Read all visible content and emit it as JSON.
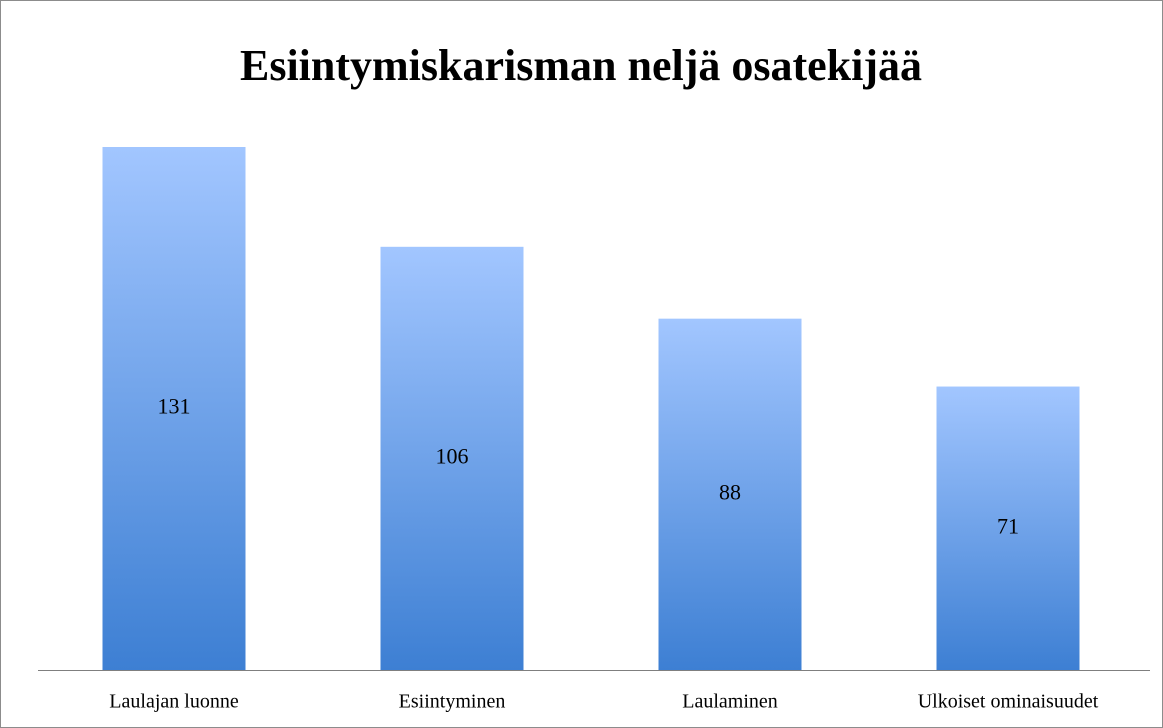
{
  "chart_data": {
    "type": "bar",
    "title": "Esiintymiskarisman neljä osatekijää",
    "categories": [
      "Laulajan luonne",
      "Esiintyminen",
      "Laulaminen",
      "Ulkoiset ominaisuudet"
    ],
    "values": [
      131,
      106,
      88,
      71
    ]
  }
}
